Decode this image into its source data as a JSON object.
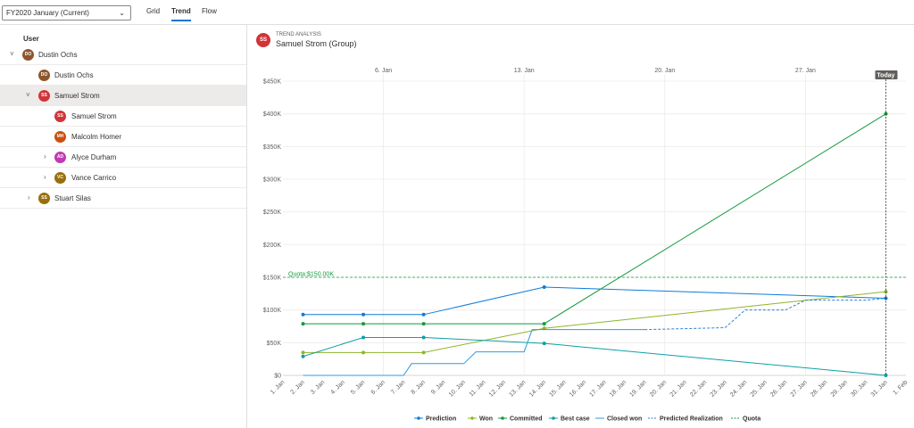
{
  "toolbar": {
    "period_value": "FY2020 January (Current)",
    "tabs": [
      {
        "label": "Grid"
      },
      {
        "label": "Trend"
      },
      {
        "label": "Flow"
      }
    ]
  },
  "grid": {
    "column_header": "User",
    "rows": [
      {
        "initials": "DO",
        "name": "Dustin Ochs",
        "color": "#8e562e",
        "expander": "down"
      },
      {
        "initials": "DO",
        "name": "Dustin Ochs",
        "color": "#8e562e",
        "expander": ""
      },
      {
        "initials": "SS",
        "name": "Samuel Strom",
        "color": "#d13438",
        "expander": "down"
      },
      {
        "initials": "SS",
        "name": "Samuel Strom",
        "color": "#d13438",
        "expander": ""
      },
      {
        "initials": "MH",
        "name": "Malcolm Homer",
        "color": "#ca5010",
        "expander": ""
      },
      {
        "initials": "AD",
        "name": "Alyce Durham",
        "color": "#c239b3",
        "expander": "right"
      },
      {
        "initials": "VC",
        "name": "Vance Carrico",
        "color": "#986f0b",
        "expander": "right"
      },
      {
        "initials": "SS",
        "name": "Stuart Silas",
        "color": "#986f0b",
        "expander": "right"
      }
    ]
  },
  "trend": {
    "subtitle": "TREND ANALYSIS",
    "title": "Samuel Strom (Group)",
    "avatar_initials": "SS",
    "today_label": "Today",
    "quota_label": "Quota:$150.00K"
  },
  "chart_data": {
    "type": "line",
    "x": [
      "1. Jan",
      "2. Jan",
      "3. Jan",
      "4. Jan",
      "5. Jan",
      "6. Jan",
      "7. Jan",
      "8. Jan",
      "9. Jan",
      "10. Jan",
      "11. Jan",
      "12. Jan",
      "13. Jan",
      "14. Jan",
      "15. Jan",
      "16. Jan",
      "17. Jan",
      "18. Jan",
      "19. Jan",
      "20. Jan",
      "21. Jan",
      "22. Jan",
      "23. Jan",
      "24. Jan",
      "25. Jan",
      "26. Jan",
      "27. Jan",
      "28. Jan",
      "29. Jan",
      "30. Jan",
      "31. Jan",
      "1. Feb"
    ],
    "week_labels": [
      "6. Jan",
      "13. Jan",
      "20. Jan",
      "27. Jan"
    ],
    "y_ticks": [
      {
        "v": 0,
        "label": "$0"
      },
      {
        "v": 50000,
        "label": "$50K"
      },
      {
        "v": 100000,
        "label": "$100K"
      },
      {
        "v": 150000,
        "label": "$150K"
      },
      {
        "v": 200000,
        "label": "$200K"
      },
      {
        "v": 250000,
        "label": "$250K"
      },
      {
        "v": 300000,
        "label": "$300K"
      },
      {
        "v": 350000,
        "label": "$350K"
      },
      {
        "v": 400000,
        "label": "$400K"
      },
      {
        "v": 450000,
        "label": "$450K"
      }
    ],
    "ylim": [
      0,
      450000
    ],
    "today_day": 31,
    "quota": 150000,
    "series": [
      {
        "name": "Prediction",
        "color": "#0f7bd9",
        "style": "solid",
        "markers": true,
        "points": [
          [
            2,
            93000
          ],
          [
            5,
            93000
          ],
          [
            8,
            93000
          ],
          [
            14,
            135000
          ],
          [
            31,
            118000
          ]
        ]
      },
      {
        "name": "Won",
        "color": "#8fb52a",
        "style": "solid",
        "markers": true,
        "points": [
          [
            2,
            35000
          ],
          [
            5,
            35000
          ],
          [
            8,
            35000
          ],
          [
            14,
            72000
          ],
          [
            31,
            128000
          ]
        ]
      },
      {
        "name": "Committed",
        "color": "#139a3a",
        "style": "solid",
        "markers": true,
        "points": [
          [
            2,
            79000
          ],
          [
            5,
            79000
          ],
          [
            8,
            79000
          ],
          [
            14,
            79000
          ],
          [
            31,
            400000
          ]
        ]
      },
      {
        "name": "Best case",
        "color": "#0da0a6",
        "style": "solid",
        "markers": true,
        "points": [
          [
            2,
            29000
          ],
          [
            5,
            58000
          ],
          [
            8,
            58000
          ],
          [
            14,
            49000
          ],
          [
            31,
            0
          ]
        ]
      },
      {
        "name": "Closed won",
        "color": "#2c9be3",
        "style": "solid",
        "markers": false,
        "points": [
          [
            2,
            0
          ],
          [
            7,
            0
          ],
          [
            7.4,
            18000
          ],
          [
            9,
            18000
          ],
          [
            10,
            18000
          ],
          [
            10.6,
            36000
          ],
          [
            12,
            36000
          ],
          [
            13,
            36000
          ],
          [
            13.4,
            70000
          ],
          [
            19,
            70000
          ]
        ]
      },
      {
        "name": "Predicted Realization",
        "color": "#2c7fd9",
        "style": "dashed",
        "markers": false,
        "points": [
          [
            19,
            70000
          ],
          [
            23,
            73000
          ],
          [
            24,
            100000
          ],
          [
            26,
            100000
          ],
          [
            27,
            115000
          ],
          [
            30,
            115000
          ],
          [
            31,
            118000
          ]
        ]
      },
      {
        "name": "Quota",
        "color": "#139a3a",
        "style": "dashed",
        "markers": false,
        "points": [
          [
            1,
            150000
          ],
          [
            32,
            150000
          ]
        ]
      }
    ]
  }
}
